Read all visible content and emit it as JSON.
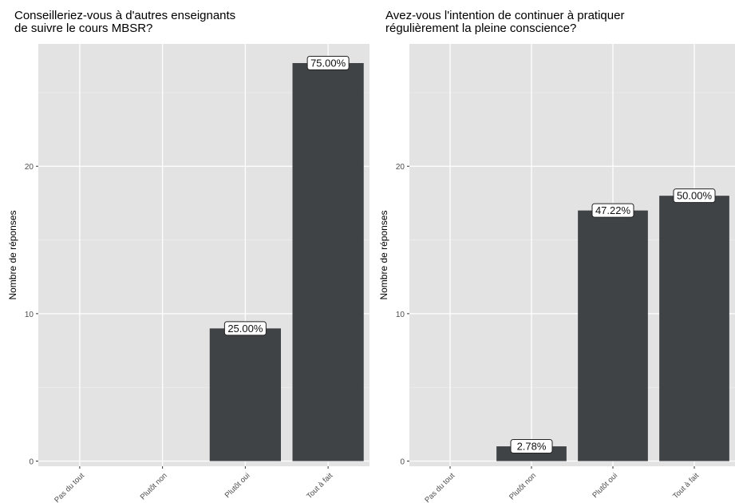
{
  "chart_data": [
    {
      "type": "bar",
      "title": "Conseilleriez-vous à d'autres enseignants\nde suivre le cours MBSR?",
      "xlabel": "",
      "ylabel": "Nombre de réponses",
      "categories": [
        "Pas du tout",
        "Plutôt non",
        "Plutôt oui",
        "Tout à fait"
      ],
      "values": [
        0,
        0,
        9,
        27
      ],
      "labels": [
        "",
        "",
        "25.00%",
        "75.00%"
      ],
      "ylim": [
        0,
        28.3
      ],
      "yticks": [
        0,
        10,
        20
      ],
      "grid": true,
      "bar_color": "#404346",
      "panel_color": "#e3e3e3"
    },
    {
      "type": "bar",
      "title": "Avez-vous l'intention de continuer à pratiquer\nrégulièrement la pleine conscience?",
      "xlabel": "",
      "ylabel": "Nombre de réponses",
      "categories": [
        "Pas du tout",
        "Plutôt non",
        "Plutôt oui",
        "Tout à fait"
      ],
      "values": [
        0,
        1,
        17,
        18
      ],
      "labels": [
        "",
        "2.78%",
        "47.22%",
        "50.00%"
      ],
      "ylim": [
        0,
        28.3
      ],
      "yticks": [
        0,
        10,
        20
      ],
      "grid": true,
      "bar_color": "#404346",
      "panel_color": "#e3e3e3"
    }
  ]
}
